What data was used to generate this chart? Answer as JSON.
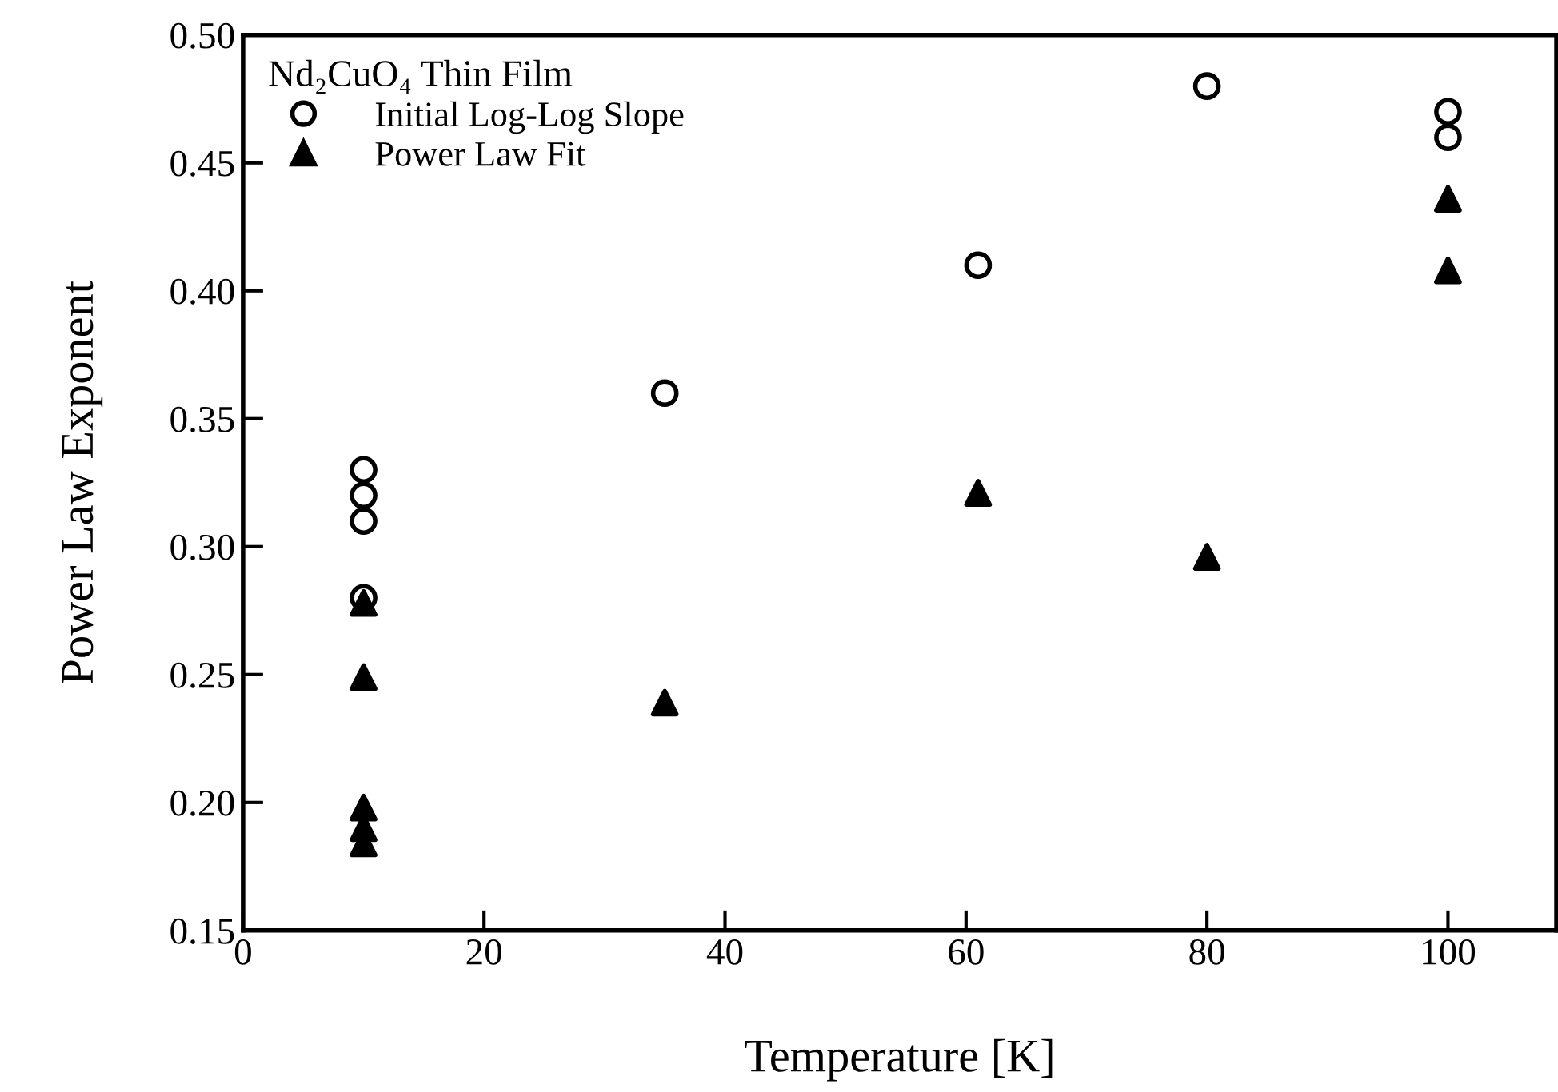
{
  "chart_data": {
    "type": "scatter",
    "xlabel": "Temperature [K]",
    "ylabel": "Power Law Exponent",
    "legend_title": "Nd₂CuO₄ Thin Film",
    "xlim": [
      0,
      109
    ],
    "xticks": [
      0,
      20,
      40,
      60,
      80,
      100
    ],
    "ylim": [
      0.15,
      0.5
    ],
    "yticks": [
      {
        "value": 0.15,
        "label": "0.15"
      },
      {
        "value": 0.2,
        "label": "0.20"
      },
      {
        "value": 0.25,
        "label": "0.25"
      },
      {
        "value": 0.3,
        "label": "0.30"
      },
      {
        "value": 0.35,
        "label": "0.35"
      },
      {
        "value": 0.4,
        "label": "0.40"
      },
      {
        "value": 0.45,
        "label": "0.45"
      },
      {
        "value": 0.5,
        "label": "0.50"
      }
    ],
    "grid": false,
    "legend": "top left",
    "series": [
      {
        "name": "Initial Log-Log Slope",
        "color": "#000000",
        "marker": "circle",
        "x": [
          10,
          10,
          10,
          10,
          35,
          61,
          80,
          100,
          100
        ],
        "values": [
          0.33,
          0.32,
          0.31,
          0.28,
          0.36,
          0.41,
          0.48,
          0.47,
          0.46
        ]
      },
      {
        "name": "Power Law Fit",
        "color": "#000000",
        "marker": "triangle",
        "x": [
          10,
          10,
          10,
          10,
          10,
          35,
          61,
          80,
          100,
          100
        ],
        "values": [
          0.278,
          0.249,
          0.198,
          0.19,
          0.184,
          0.239,
          0.321,
          0.296,
          0.436,
          0.408
        ]
      }
    ]
  }
}
